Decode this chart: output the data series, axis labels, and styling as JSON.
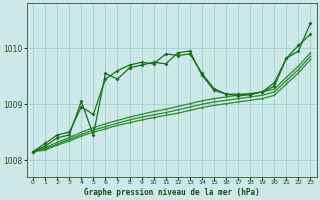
{
  "title": "Graphe pression niveau de la mer (hPa)",
  "background_color": "#cce8e8",
  "grid_color": "#99cccc",
  "line_color": "#1a6e1a",
  "line_color2": "#2d8b2d",
  "xlim": [
    -0.5,
    23.5
  ],
  "ylim": [
    1007.7,
    1010.8
  ],
  "yticks": [
    1008,
    1009,
    1010
  ],
  "xticks": [
    0,
    1,
    2,
    3,
    4,
    5,
    6,
    7,
    8,
    9,
    10,
    11,
    12,
    13,
    14,
    15,
    16,
    17,
    18,
    19,
    20,
    21,
    22,
    23
  ],
  "series_volatile": [
    1008.15,
    1008.25,
    1008.4,
    1008.45,
    1009.05,
    1008.45,
    1009.55,
    1009.45,
    1009.65,
    1009.7,
    1009.75,
    1009.72,
    1009.92,
    1009.95,
    1009.52,
    1009.25,
    1009.18,
    1009.15,
    1009.17,
    1009.22,
    1009.32,
    1009.82,
    1009.95,
    1010.45
  ],
  "series_smooth": [
    1008.15,
    1008.3,
    1008.45,
    1008.5,
    1008.95,
    1008.82,
    1009.45,
    1009.6,
    1009.7,
    1009.75,
    1009.72,
    1009.9,
    1009.87,
    1009.9,
    1009.55,
    1009.28,
    1009.18,
    1009.18,
    1009.18,
    1009.22,
    1009.38,
    1009.82,
    1010.05,
    1010.25
  ],
  "series_linear1": [
    1008.15,
    1008.22,
    1008.32,
    1008.4,
    1008.5,
    1008.58,
    1008.65,
    1008.71,
    1008.77,
    1008.82,
    1008.87,
    1008.91,
    1008.96,
    1009.01,
    1009.06,
    1009.1,
    1009.13,
    1009.16,
    1009.19,
    1009.22,
    1009.27,
    1009.48,
    1009.68,
    1009.92
  ],
  "series_linear2": [
    1008.15,
    1008.2,
    1008.29,
    1008.37,
    1008.46,
    1008.54,
    1008.6,
    1008.66,
    1008.72,
    1008.77,
    1008.81,
    1008.85,
    1008.9,
    1008.95,
    1009.0,
    1009.04,
    1009.07,
    1009.1,
    1009.13,
    1009.16,
    1009.22,
    1009.42,
    1009.62,
    1009.86
  ],
  "series_linear3": [
    1008.15,
    1008.18,
    1008.27,
    1008.34,
    1008.43,
    1008.5,
    1008.56,
    1008.62,
    1008.67,
    1008.72,
    1008.76,
    1008.8,
    1008.84,
    1008.89,
    1008.94,
    1008.98,
    1009.01,
    1009.04,
    1009.07,
    1009.1,
    1009.16,
    1009.36,
    1009.56,
    1009.8
  ]
}
